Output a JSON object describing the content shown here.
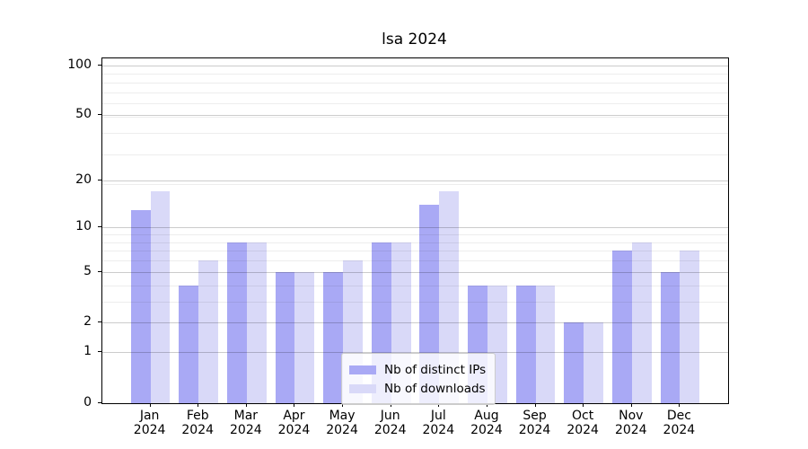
{
  "title": "lsa 2024",
  "chart_data": {
    "type": "bar",
    "title": "lsa 2024",
    "months": [
      "Jan",
      "Feb",
      "Mar",
      "Apr",
      "May",
      "Jun",
      "Jul",
      "Aug",
      "Sep",
      "Oct",
      "Nov",
      "Dec"
    ],
    "year": "2024",
    "series": [
      {
        "name": "Nb of distinct IPs",
        "color": "#a9a9f5",
        "values": [
          13,
          4,
          8,
          5,
          5,
          8,
          14,
          4,
          4,
          2,
          7,
          5
        ]
      },
      {
        "name": "Nb of downloads",
        "color": "#d9d9f8",
        "values": [
          17,
          6,
          8,
          5,
          6,
          8,
          17,
          4,
          4,
          2,
          8,
          7
        ]
      }
    ],
    "yscale": "log10(1+y)",
    "ylim": [
      0,
      110
    ],
    "y_ticks": [
      0,
      1,
      2,
      5,
      10,
      20,
      50,
      100
    ],
    "y_minor_ticks": [
      3,
      4,
      6,
      7,
      8,
      9,
      19,
      29,
      39,
      49,
      59,
      69,
      79,
      89
    ],
    "grid": "horizontal",
    "legend_position": "lower center"
  },
  "colors": {
    "major_grid": "rgba(0,0,0,0.20)",
    "minor_grid": "rgba(0,0,0,0.07)",
    "axis": "#000000",
    "legend_border": "#cccccc",
    "legend_background": "rgba(255,255,255,0.8)"
  }
}
